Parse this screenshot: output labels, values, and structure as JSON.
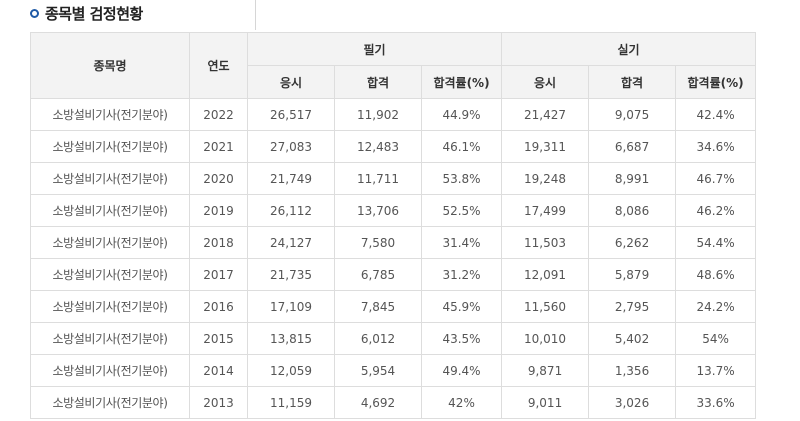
{
  "section": {
    "title": "종목별 검정현황"
  },
  "table": {
    "headers": {
      "name": "종목명",
      "year": "연도",
      "written": "필기",
      "practical": "실기",
      "applicants": "응시",
      "passed": "합격",
      "pass_rate": "합격률(%)"
    },
    "rows": [
      {
        "name": "소방설비기사(전기분야)",
        "year": "2022",
        "w_apply": "26,517",
        "w_pass": "11,902",
        "w_rate": "44.9%",
        "p_apply": "21,427",
        "p_pass": "9,075",
        "p_rate": "42.4%"
      },
      {
        "name": "소방설비기사(전기분야)",
        "year": "2021",
        "w_apply": "27,083",
        "w_pass": "12,483",
        "w_rate": "46.1%",
        "p_apply": "19,311",
        "p_pass": "6,687",
        "p_rate": "34.6%"
      },
      {
        "name": "소방설비기사(전기분야)",
        "year": "2020",
        "w_apply": "21,749",
        "w_pass": "11,711",
        "w_rate": "53.8%",
        "p_apply": "19,248",
        "p_pass": "8,991",
        "p_rate": "46.7%"
      },
      {
        "name": "소방설비기사(전기분야)",
        "year": "2019",
        "w_apply": "26,112",
        "w_pass": "13,706",
        "w_rate": "52.5%",
        "p_apply": "17,499",
        "p_pass": "8,086",
        "p_rate": "46.2%"
      },
      {
        "name": "소방설비기사(전기분야)",
        "year": "2018",
        "w_apply": "24,127",
        "w_pass": "7,580",
        "w_rate": "31.4%",
        "p_apply": "11,503",
        "p_pass": "6,262",
        "p_rate": "54.4%"
      },
      {
        "name": "소방설비기사(전기분야)",
        "year": "2017",
        "w_apply": "21,735",
        "w_pass": "6,785",
        "w_rate": "31.2%",
        "p_apply": "12,091",
        "p_pass": "5,879",
        "p_rate": "48.6%"
      },
      {
        "name": "소방설비기사(전기분야)",
        "year": "2016",
        "w_apply": "17,109",
        "w_pass": "7,845",
        "w_rate": "45.9%",
        "p_apply": "11,560",
        "p_pass": "2,795",
        "p_rate": "24.2%"
      },
      {
        "name": "소방설비기사(전기분야)",
        "year": "2015",
        "w_apply": "13,815",
        "w_pass": "6,012",
        "w_rate": "43.5%",
        "p_apply": "10,010",
        "p_pass": "5,402",
        "p_rate": "54%"
      },
      {
        "name": "소방설비기사(전기분야)",
        "year": "2014",
        "w_apply": "12,059",
        "w_pass": "5,954",
        "w_rate": "49.4%",
        "p_apply": "9,871",
        "p_pass": "1,356",
        "p_rate": "13.7%"
      },
      {
        "name": "소방설비기사(전기분야)",
        "year": "2013",
        "w_apply": "11,159",
        "w_pass": "4,692",
        "w_rate": "42%",
        "p_apply": "9,011",
        "p_pass": "3,026",
        "p_rate": "33.6%"
      }
    ]
  }
}
